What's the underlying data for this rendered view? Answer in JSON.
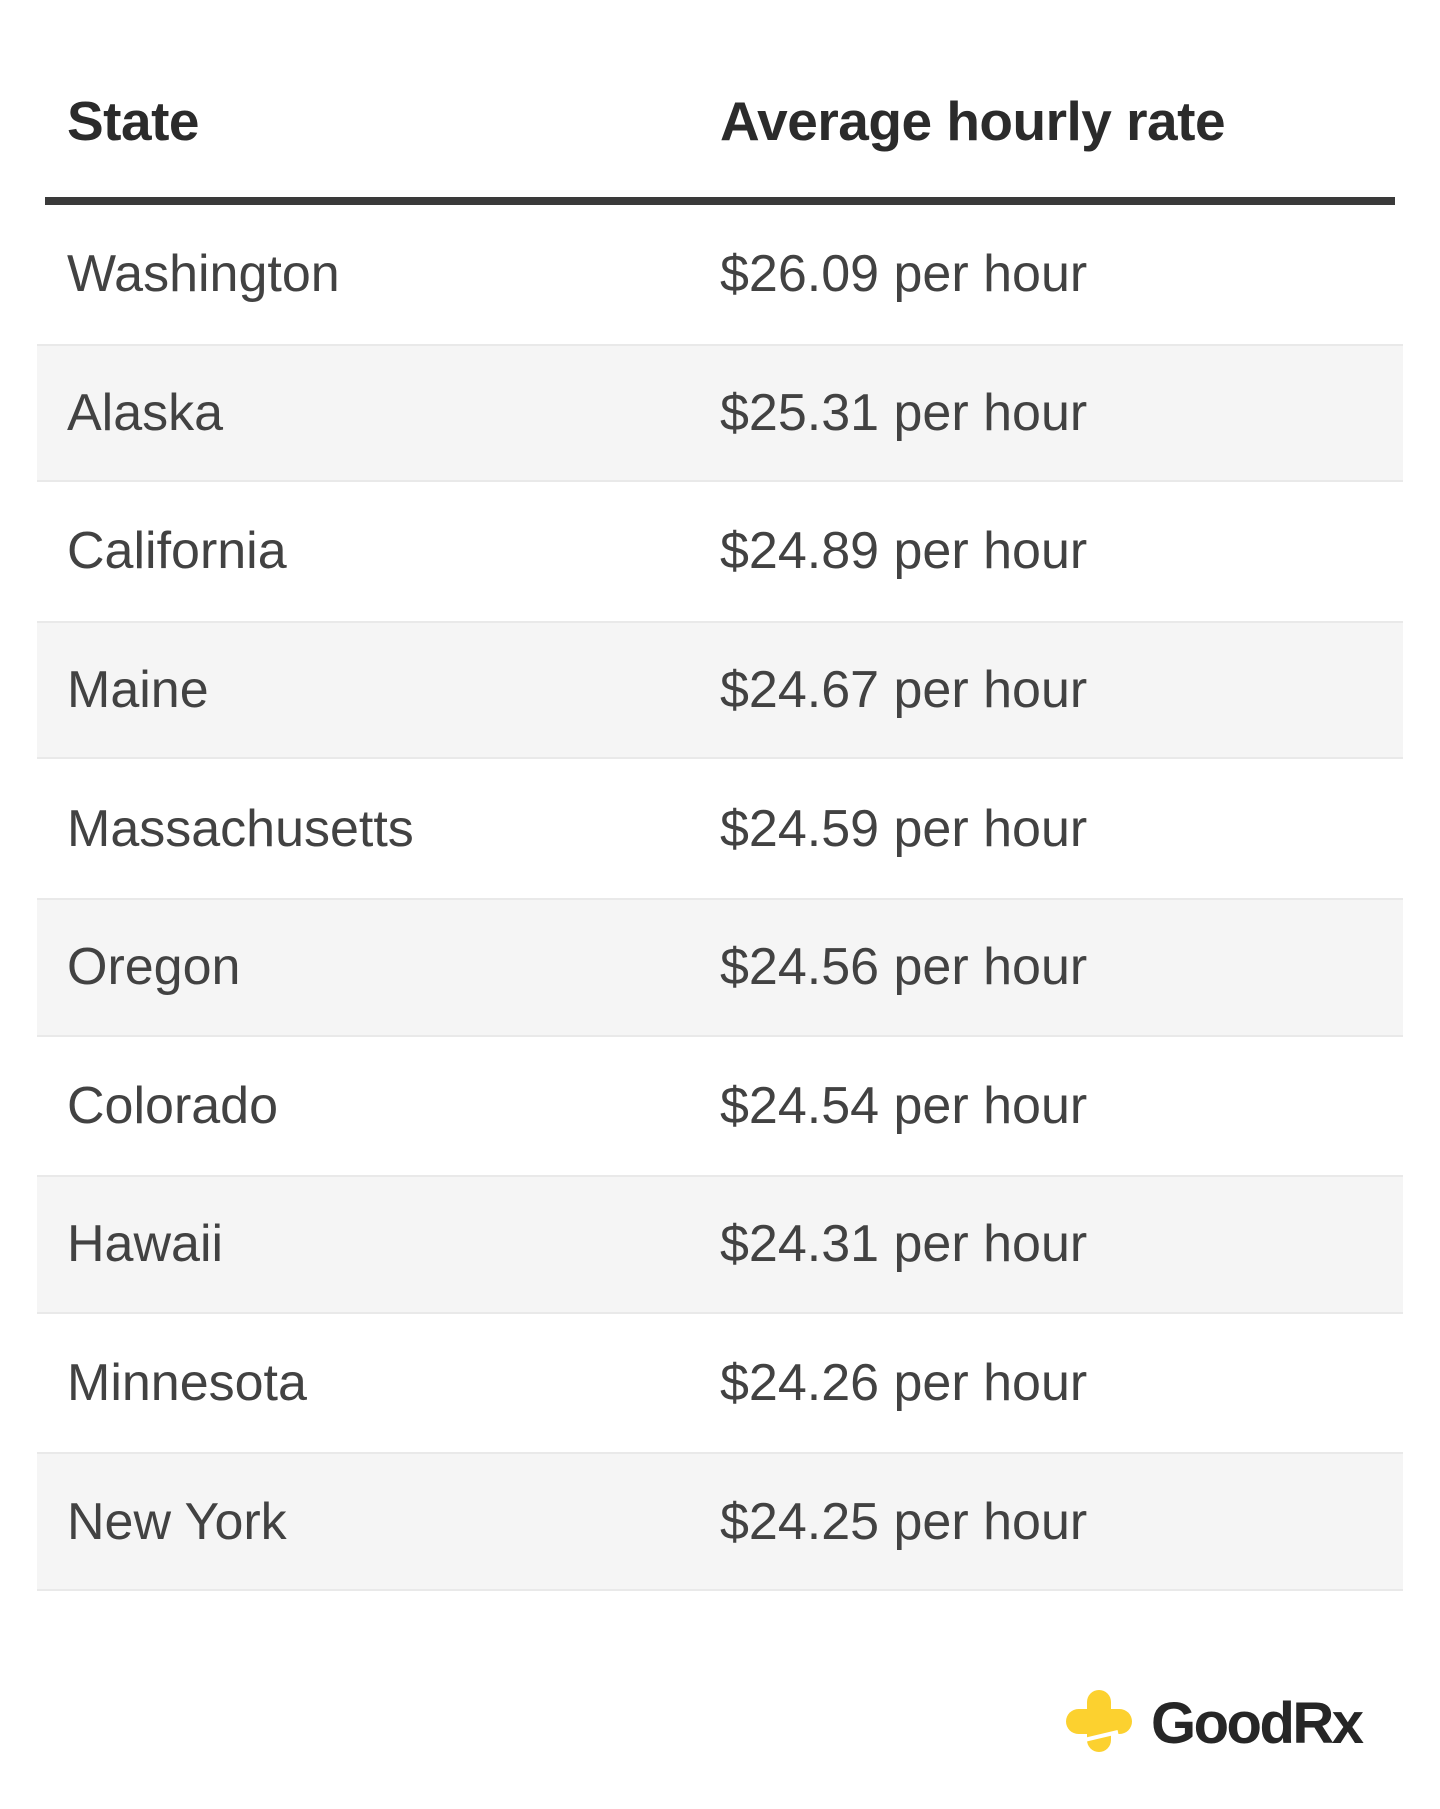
{
  "table": {
    "columns": [
      "State",
      "Average hourly rate"
    ],
    "rows": [
      {
        "state": "Washington",
        "rate": "$26.09 per hour"
      },
      {
        "state": "Alaska",
        "rate": "$25.31 per hour"
      },
      {
        "state": "California",
        "rate": "$24.89 per hour"
      },
      {
        "state": "Maine",
        "rate": "$24.67 per hour"
      },
      {
        "state": "Massachusetts",
        "rate": "$24.59 per hour"
      },
      {
        "state": "Oregon",
        "rate": "$24.56 per hour"
      },
      {
        "state": "Colorado",
        "rate": "$24.54 per hour"
      },
      {
        "state": "Hawaii",
        "rate": "$24.31 per hour"
      },
      {
        "state": "Minnesota",
        "rate": "$24.26 per hour"
      },
      {
        "state": "New York",
        "rate": "$24.25 per hour"
      }
    ]
  },
  "chart_data": {
    "type": "table",
    "columns": [
      "State",
      "Average hourly rate"
    ],
    "rows": [
      [
        "Washington",
        "$26.09 per hour"
      ],
      [
        "Alaska",
        "$25.31 per hour"
      ],
      [
        "California",
        "$24.89 per hour"
      ],
      [
        "Maine",
        "$24.67 per hour"
      ],
      [
        "Massachusetts",
        "$24.59 per hour"
      ],
      [
        "Oregon",
        "$24.56 per hour"
      ],
      [
        "Colorado",
        "$24.54 per hour"
      ],
      [
        "Hawaii",
        "$24.31 per hour"
      ],
      [
        "Minnesota",
        "$24.26 per hour"
      ],
      [
        "New York",
        "$24.25 per hour"
      ]
    ],
    "rates_numeric": [
      26.09,
      25.31,
      24.89,
      24.67,
      24.59,
      24.56,
      24.54,
      24.31,
      24.26,
      24.25
    ],
    "rate_unit": "per hour",
    "currency": "USD",
    "layout": "two-column table, alternating light-gray row stripes, heavy rule under header"
  },
  "branding": {
    "wordmark": "GoodRx",
    "cross_icon_color": "#fcd12f",
    "wordmark_color": "#262626"
  },
  "colors": {
    "background": "#ffffff",
    "header_text": "#2b2b2b",
    "body_text": "#424242",
    "divider": "#3a3a3a",
    "row_alt_background": "#f5f5f5",
    "row_alt_border": "#e9e9e9"
  }
}
